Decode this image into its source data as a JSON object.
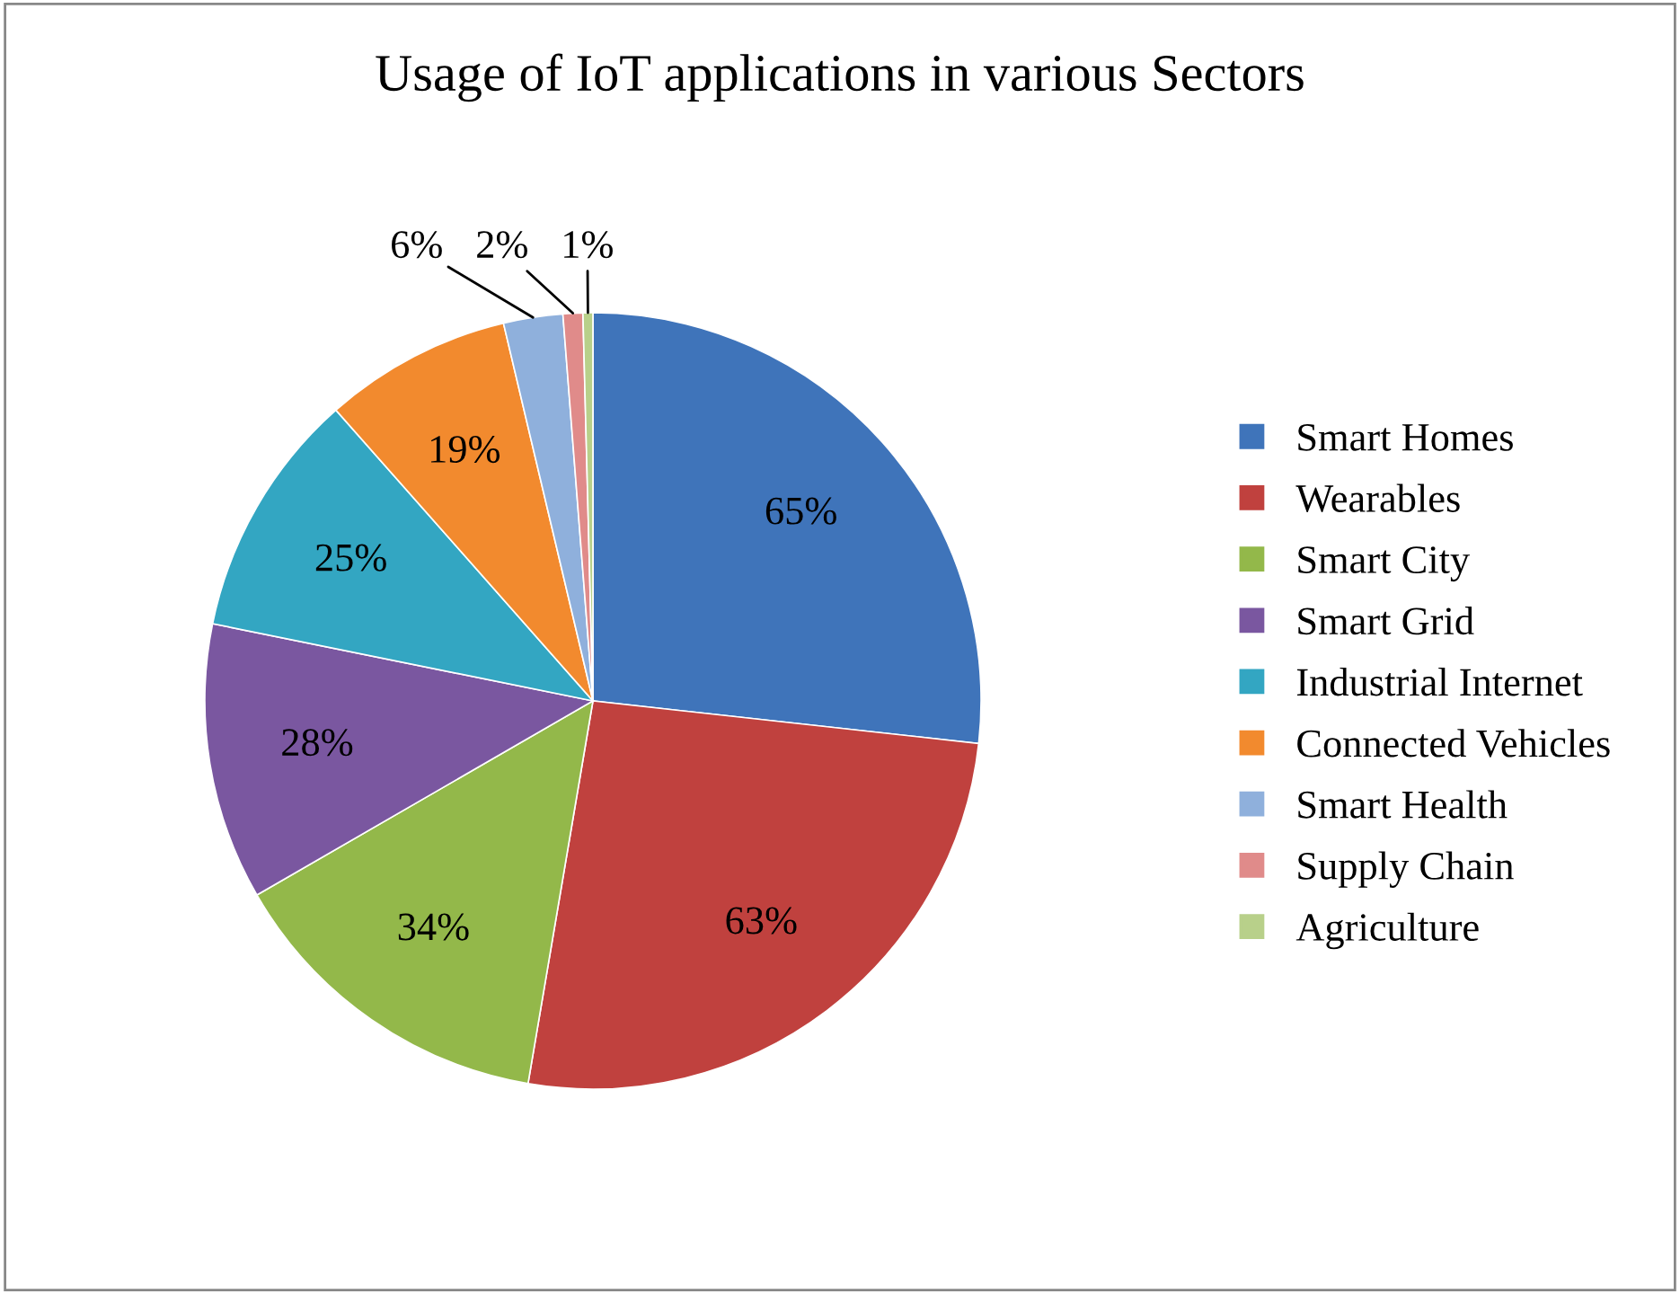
{
  "chart_data": {
    "type": "pie",
    "title": "Usage of IoT applications in various Sectors",
    "categories": [
      "Smart Homes",
      "Wearables",
      "Smart City",
      "Smart Grid",
      "Industrial Internet",
      "Connected Vehicles",
      "Smart Health",
      "Supply Chain",
      "Agriculture"
    ],
    "values": [
      65,
      63,
      34,
      28,
      25,
      19,
      6,
      2,
      1
    ],
    "value_labels": [
      "65%",
      "63%",
      "34%",
      "28%",
      "25%",
      "19%",
      "6%",
      "2%",
      "1%"
    ],
    "colors": [
      "#3f74ba",
      "#c0413e",
      "#93b84a",
      "#7a57a0",
      "#33a6c2",
      "#f28a2e",
      "#8fb0dc",
      "#e08b8a",
      "#b8d08a"
    ],
    "legend": "right"
  }
}
